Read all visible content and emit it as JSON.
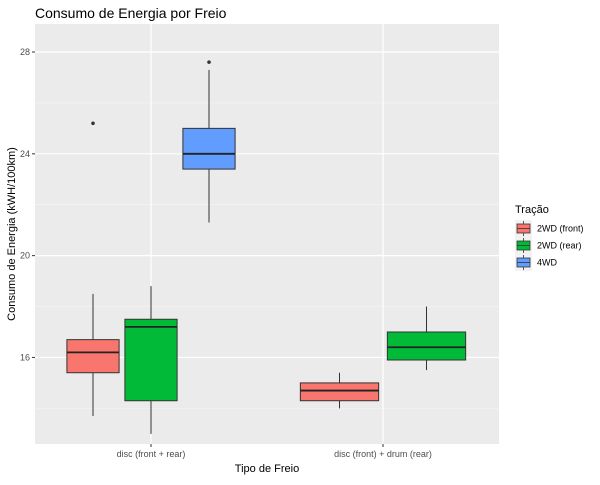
{
  "chart_data": {
    "type": "boxplot",
    "title": "Consumo de Energia por Freio",
    "xlabel": "Tipo de Freio",
    "ylabel": "Consumo de Energia (kWH/100km)",
    "categories": [
      "disc (front + rear)",
      "disc (front) + drum (rear)"
    ],
    "ylim": [
      12.6,
      29.1
    ],
    "yticks": [
      16,
      20,
      24,
      28
    ],
    "grid": true,
    "legend": {
      "title": "Tração",
      "position": "right",
      "entries": [
        "2WD (front)",
        "2WD (rear)",
        "4WD"
      ]
    },
    "series": [
      {
        "name": "2WD (front)",
        "color": "#F8766D",
        "boxes": [
          {
            "category": "disc (front + rear)",
            "whisker_low": 13.7,
            "q1": 15.4,
            "median": 16.2,
            "q3": 16.7,
            "whisker_high": 18.5,
            "outliers": [
              25.2
            ]
          },
          {
            "category": "disc (front) + drum (rear)",
            "whisker_low": 14.0,
            "q1": 14.3,
            "median": 14.7,
            "q3": 15.0,
            "whisker_high": 15.4,
            "outliers": []
          }
        ]
      },
      {
        "name": "2WD (rear)",
        "color": "#00BA38",
        "boxes": [
          {
            "category": "disc (front + rear)",
            "whisker_low": 13.0,
            "q1": 14.3,
            "median": 17.2,
            "q3": 17.5,
            "whisker_high": 18.8,
            "outliers": []
          },
          {
            "category": "disc (front) + drum (rear)",
            "whisker_low": 15.5,
            "q1": 15.9,
            "median": 16.4,
            "q3": 17.0,
            "whisker_high": 18.0,
            "outliers": []
          }
        ]
      },
      {
        "name": "4WD",
        "color": "#619CFF",
        "boxes": [
          {
            "category": "disc (front + rear)",
            "whisker_low": 21.3,
            "q1": 23.4,
            "median": 24.0,
            "q3": 25.0,
            "whisker_high": 27.3,
            "outliers": [
              27.6
            ]
          }
        ]
      }
    ]
  }
}
